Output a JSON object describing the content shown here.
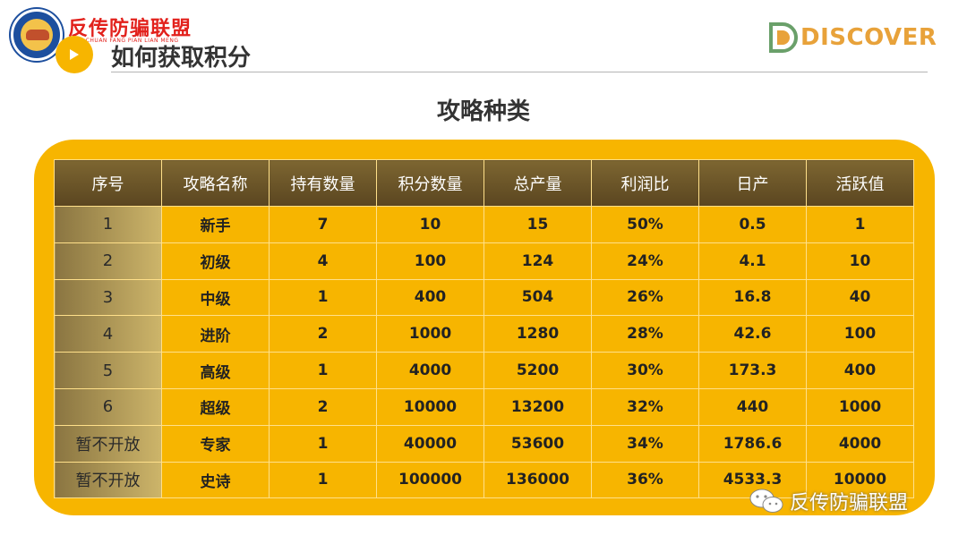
{
  "header": {
    "brand": "反传防骗联盟",
    "brand_sub": "PAN CHUAN FANG PIAN LIAN MENG",
    "page_title": "如何获取积分",
    "discover": "DISCOVER"
  },
  "section_title": "攻略种类",
  "table": {
    "columns": [
      "序号",
      "攻略名称",
      "持有数量",
      "积分数量",
      "总产量",
      "利润比",
      "日产",
      "活跃值"
    ],
    "rows": [
      [
        "1",
        "新手",
        "7",
        "10",
        "15",
        "50%",
        "0.5",
        "1"
      ],
      [
        "2",
        "初级",
        "4",
        "100",
        "124",
        "24%",
        "4.1",
        "10"
      ],
      [
        "3",
        "中级",
        "1",
        "400",
        "504",
        "26%",
        "16.8",
        "40"
      ],
      [
        "4",
        "进阶",
        "2",
        "1000",
        "1280",
        "28%",
        "42.6",
        "100"
      ],
      [
        "5",
        "高级",
        "1",
        "4000",
        "5200",
        "30%",
        "173.3",
        "400"
      ],
      [
        "6",
        "超级",
        "2",
        "10000",
        "13200",
        "32%",
        "440",
        "1000"
      ],
      [
        "暂不开放",
        "专家",
        "1",
        "40000",
        "53600",
        "34%",
        "1786.6",
        "4000"
      ],
      [
        "暂不开放",
        "史诗",
        "1",
        "100000",
        "136000",
        "36%",
        "4533.3",
        "10000"
      ]
    ]
  },
  "watermark": "反传防骗联盟",
  "colors": {
    "panel": "#f7b500",
    "header_row": "#6b5526",
    "brand_red": "#e2211c",
    "discover_orange": "#e8a23a"
  },
  "icons": [
    "anti-fraud-badge-icon",
    "arrow-right-icon",
    "discover-d-logo-icon",
    "wechat-icon"
  ]
}
